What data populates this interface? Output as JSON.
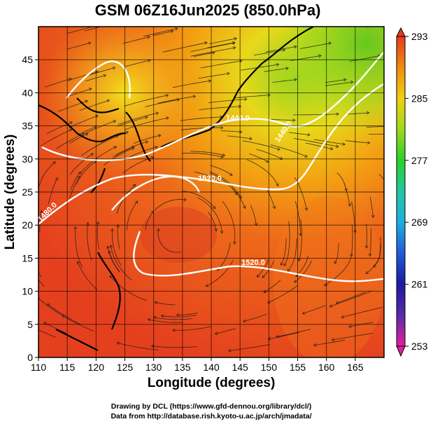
{
  "chart_data": {
    "type": "heatmap",
    "title": "GSM 06Z16Jun2025 (850.0hPa)",
    "xlabel": "Longitude (degrees)",
    "ylabel": "Latitude (degrees)",
    "xlim": [
      110,
      170
    ],
    "ylim": [
      0,
      50
    ],
    "x_ticks": [
      "110",
      "115",
      "120",
      "125",
      "130",
      "135",
      "140",
      "145",
      "150",
      "155",
      "160",
      "165"
    ],
    "y_ticks": [
      "0",
      "5",
      "10",
      "15",
      "20",
      "25",
      "30",
      "35",
      "40",
      "45"
    ],
    "colorbar": {
      "min": 253,
      "max": 293,
      "ticks": [
        "293",
        "285",
        "277",
        "269",
        "261",
        "253"
      ],
      "colors": [
        "#e020a0",
        "#5a2aa8",
        "#1a1aa0",
        "#1e5ad8",
        "#1eaee0",
        "#20c8a0",
        "#2ad02a",
        "#a0d81e",
        "#f0d010",
        "#f08a10",
        "#e83a1e"
      ]
    },
    "contours": [
      {
        "label": "1440.0"
      },
      {
        "label": "1440.0"
      },
      {
        "label": "1520.0"
      },
      {
        "label": "1520.0"
      },
      {
        "label": "1480.0"
      }
    ]
  },
  "credits": {
    "line1": "Drawing by DCL (https://www.gfd-dennou.org/library/dcl/)",
    "line2": "Data from http://database.rish.kyoto-u.ac.jp/arch/jmadata/"
  }
}
